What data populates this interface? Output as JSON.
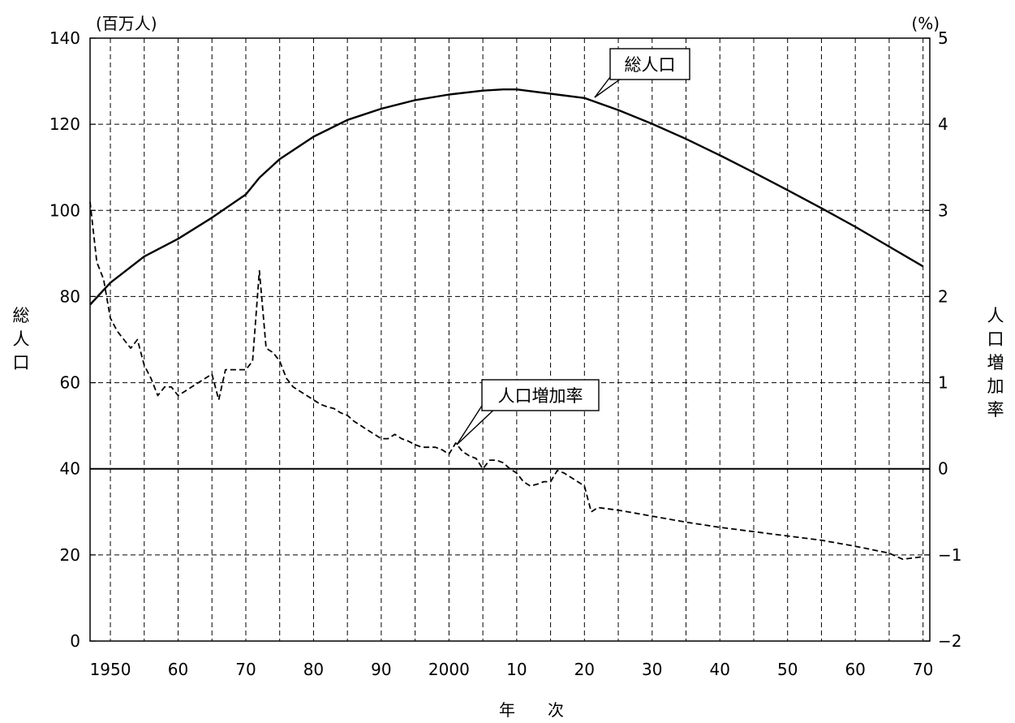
{
  "chart_data": {
    "type": "line",
    "x_title": "年　　次",
    "y_left": {
      "unit_label": "(百万人)",
      "title": "総人口",
      "range": [
        0,
        140
      ],
      "ticks": [
        "0",
        "20",
        "40",
        "60",
        "80",
        "100",
        "120",
        "140"
      ]
    },
    "y_right": {
      "unit_label": "(%)",
      "title": "人口増加率",
      "range": [
        -2,
        5
      ],
      "ticks": [
        "−2",
        "−1",
        "0",
        "1",
        "2",
        "3",
        "4",
        "5"
      ]
    },
    "x_range": [
      1947,
      2071
    ],
    "x_ticks": [
      {
        "year": 1950,
        "label": "1950"
      },
      {
        "year": 1960,
        "label": "60"
      },
      {
        "year": 1970,
        "label": "70"
      },
      {
        "year": 1980,
        "label": "80"
      },
      {
        "year": 1990,
        "label": "90"
      },
      {
        "year": 2000,
        "label": "2000"
      },
      {
        "year": 2010,
        "label": "10"
      },
      {
        "year": 2020,
        "label": "20"
      },
      {
        "year": 2030,
        "label": "30"
      },
      {
        "year": 2040,
        "label": "40"
      },
      {
        "year": 2050,
        "label": "50"
      },
      {
        "year": 2060,
        "label": "60"
      },
      {
        "year": 2070,
        "label": "70"
      }
    ],
    "grid": true,
    "series": [
      {
        "name": "総人口",
        "axis": "left",
        "style": "solid",
        "points": [
          [
            1947,
            78.1
          ],
          [
            1950,
            83.2
          ],
          [
            1955,
            89.3
          ],
          [
            1960,
            93.4
          ],
          [
            1965,
            98.3
          ],
          [
            1970,
            103.7
          ],
          [
            1972,
            107.6
          ],
          [
            1975,
            111.9
          ],
          [
            1980,
            117.1
          ],
          [
            1985,
            121.0
          ],
          [
            1990,
            123.6
          ],
          [
            1995,
            125.6
          ],
          [
            2000,
            126.9
          ],
          [
            2005,
            127.8
          ],
          [
            2008,
            128.1
          ],
          [
            2010,
            128.1
          ],
          [
            2015,
            127.1
          ],
          [
            2020,
            126.1
          ],
          [
            2025,
            123.3
          ],
          [
            2030,
            120.1
          ],
          [
            2035,
            116.6
          ],
          [
            2040,
            112.8
          ],
          [
            2045,
            108.8
          ],
          [
            2050,
            104.7
          ],
          [
            2055,
            100.5
          ],
          [
            2060,
            96.2
          ],
          [
            2065,
            91.6
          ],
          [
            2070,
            87.0
          ]
        ]
      },
      {
        "name": "人口増加率",
        "axis": "right",
        "style": "dashed",
        "points": [
          [
            1947,
            3.1
          ],
          [
            1948,
            2.4
          ],
          [
            1949,
            2.2
          ],
          [
            1950,
            1.75
          ],
          [
            1951,
            1.6
          ],
          [
            1952,
            1.5
          ],
          [
            1953,
            1.4
          ],
          [
            1954,
            1.5
          ],
          [
            1955,
            1.2
          ],
          [
            1956,
            1.05
          ],
          [
            1957,
            0.85
          ],
          [
            1958,
            0.95
          ],
          [
            1959,
            0.95
          ],
          [
            1960,
            0.85
          ],
          [
            1961,
            0.9
          ],
          [
            1962,
            0.95
          ],
          [
            1963,
            1.0
          ],
          [
            1964,
            1.05
          ],
          [
            1965,
            1.1
          ],
          [
            1966,
            0.8
          ],
          [
            1967,
            1.15
          ],
          [
            1968,
            1.15
          ],
          [
            1969,
            1.15
          ],
          [
            1970,
            1.15
          ],
          [
            1971,
            1.25
          ],
          [
            1972,
            2.3
          ],
          [
            1973,
            1.4
          ],
          [
            1974,
            1.35
          ],
          [
            1975,
            1.25
          ],
          [
            1976,
            1.05
          ],
          [
            1977,
            0.95
          ],
          [
            1978,
            0.9
          ],
          [
            1979,
            0.85
          ],
          [
            1980,
            0.8
          ],
          [
            1981,
            0.75
          ],
          [
            1982,
            0.72
          ],
          [
            1983,
            0.7
          ],
          [
            1984,
            0.65
          ],
          [
            1985,
            0.62
          ],
          [
            1986,
            0.55
          ],
          [
            1987,
            0.5
          ],
          [
            1988,
            0.45
          ],
          [
            1989,
            0.4
          ],
          [
            1990,
            0.35
          ],
          [
            1991,
            0.35
          ],
          [
            1992,
            0.4
          ],
          [
            1993,
            0.35
          ],
          [
            1994,
            0.32
          ],
          [
            1995,
            0.28
          ],
          [
            1996,
            0.25
          ],
          [
            1997,
            0.25
          ],
          [
            1998,
            0.25
          ],
          [
            1999,
            0.22
          ],
          [
            2000,
            0.17
          ],
          [
            2001,
            0.3
          ],
          [
            2002,
            0.2
          ],
          [
            2003,
            0.15
          ],
          [
            2004,
            0.12
          ],
          [
            2005,
            0.0
          ],
          [
            2006,
            0.1
          ],
          [
            2007,
            0.1
          ],
          [
            2008,
            0.07
          ],
          [
            2009,
            0.0
          ],
          [
            2010,
            -0.05
          ],
          [
            2011,
            -0.15
          ],
          [
            2012,
            -0.2
          ],
          [
            2013,
            -0.18
          ],
          [
            2014,
            -0.15
          ],
          [
            2015,
            -0.15
          ],
          [
            2016,
            -0.02
          ],
          [
            2017,
            -0.05
          ],
          [
            2018,
            -0.1
          ],
          [
            2019,
            -0.15
          ],
          [
            2020,
            -0.2
          ],
          [
            2021,
            -0.5
          ],
          [
            2022,
            -0.45
          ],
          [
            2025,
            -0.48
          ],
          [
            2030,
            -0.55
          ],
          [
            2035,
            -0.62
          ],
          [
            2040,
            -0.68
          ],
          [
            2045,
            -0.73
          ],
          [
            2050,
            -0.78
          ],
          [
            2055,
            -0.83
          ],
          [
            2060,
            -0.9
          ],
          [
            2065,
            -0.98
          ],
          [
            2067,
            -1.05
          ],
          [
            2070,
            -1.02
          ]
        ]
      }
    ],
    "annotations": [
      {
        "text": "総人口",
        "series": "総人口"
      },
      {
        "text": "人口増加率",
        "series": "人口増加率"
      }
    ]
  }
}
